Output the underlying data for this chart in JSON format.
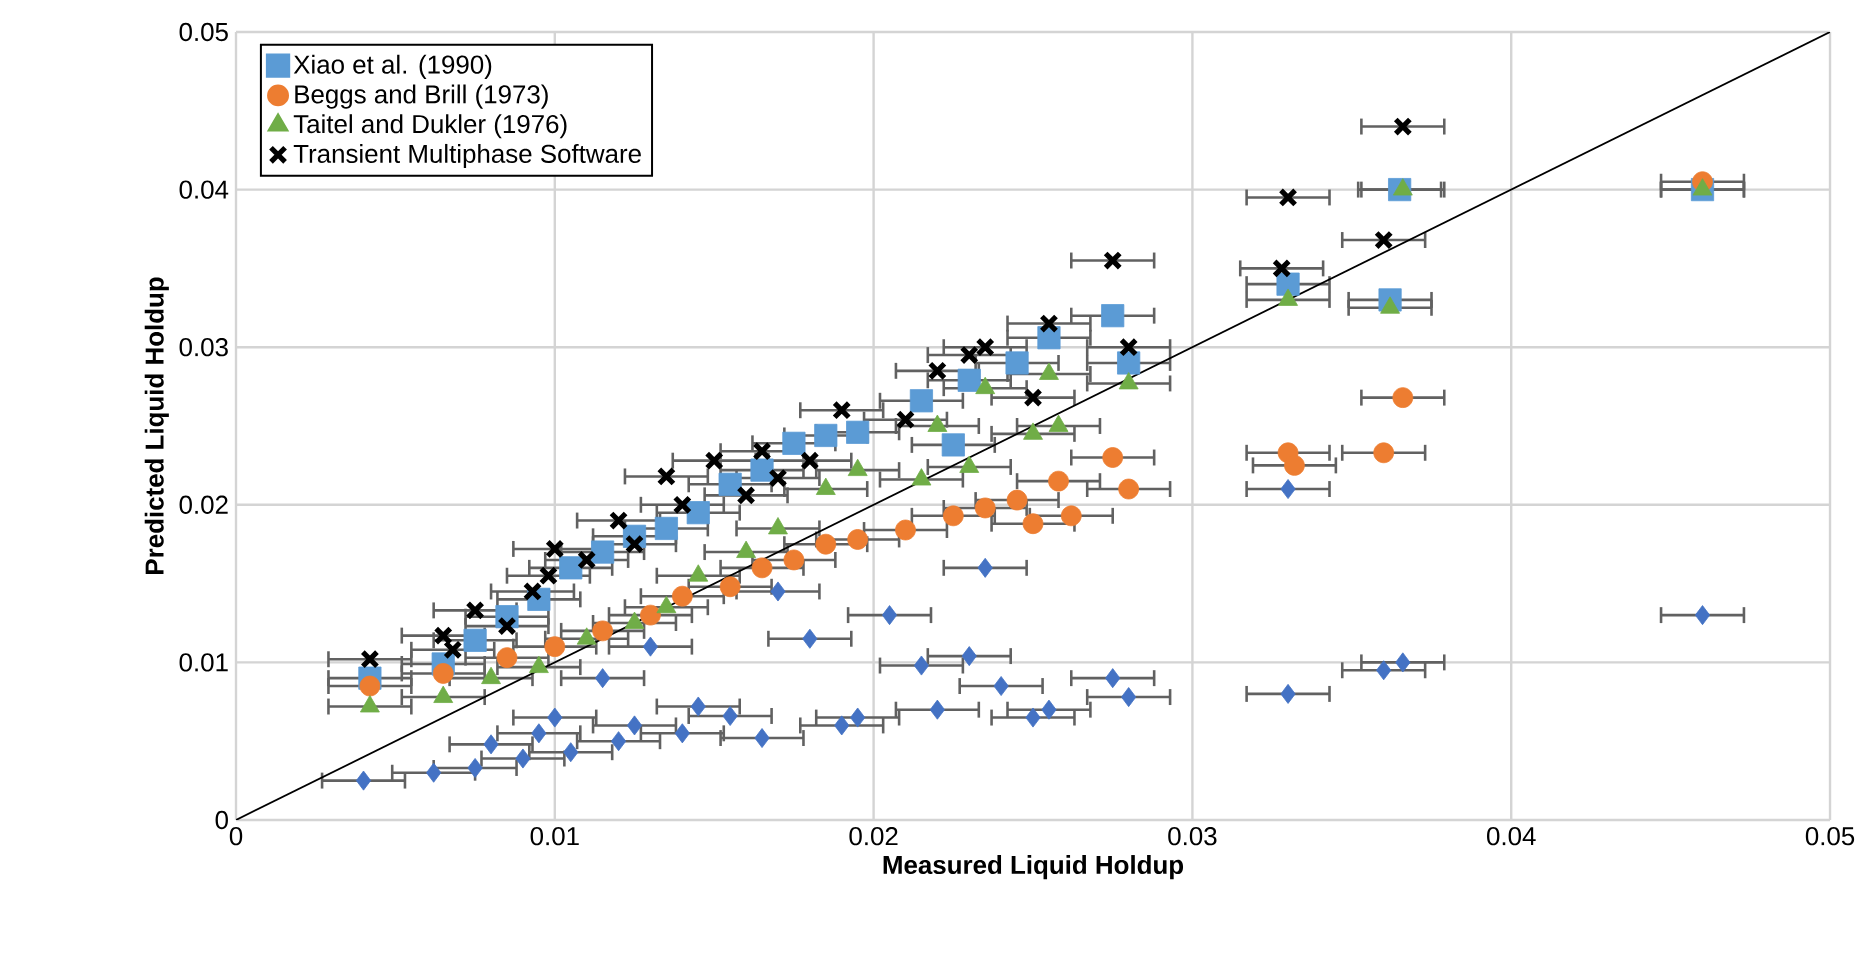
{
  "chart_data": {
    "type": "scatter",
    "xlabel": "Measured Liquid Holdup",
    "ylabel": "Predicted Liquid Holdup",
    "xlim": [
      0,
      0.05
    ],
    "ylim": [
      0,
      0.05
    ],
    "xticks": [
      0,
      0.01,
      0.02,
      0.03,
      0.04,
      0.05
    ],
    "yticks": [
      0,
      0.01,
      0.02,
      0.03,
      0.04,
      0.05
    ],
    "grid": true,
    "legend": "top left",
    "series": [
      {
        "name": "Xiao et al.  (1990)",
        "color": "#5b9bd5",
        "marker": "square",
        "x": [
          0.0042,
          0.0065,
          0.0075,
          0.0085,
          0.0095,
          0.0105,
          0.0115,
          0.0125,
          0.0135,
          0.0145,
          0.0155,
          0.0165,
          0.0175,
          0.0185,
          0.0195,
          0.0215,
          0.0225,
          0.023,
          0.0245,
          0.0255,
          0.0275,
          0.028,
          0.033,
          0.0365,
          0.0362,
          0.046
        ],
        "values": [
          0.009,
          0.0099,
          0.0114,
          0.0129,
          0.014,
          0.016,
          0.017,
          0.018,
          0.0185,
          0.0195,
          0.0213,
          0.0222,
          0.0239,
          0.0244,
          0.0246,
          0.0266,
          0.0238,
          0.0279,
          0.029,
          0.0306,
          0.032,
          0.029,
          0.034,
          0.04,
          0.033,
          0.04
        ],
        "xerrors": [
          0.0013,
          0.0013,
          0.0013,
          0.0013,
          0.0013,
          0.0013,
          0.0013,
          0.0013,
          0.0013,
          0.0013,
          0.0013,
          0.0013,
          0.0013,
          0.0013,
          0.0013,
          0.0013,
          0.0013,
          0.0013,
          0.0013,
          0.0013,
          0.0013,
          0.0013,
          0.0013,
          0.0013,
          0.0013,
          0.0013
        ]
      },
      {
        "name": "Beggs and Brill (1973)",
        "color": "#ed7d31",
        "marker": "circle",
        "x": [
          0.0042,
          0.0065,
          0.0085,
          0.01,
          0.0115,
          0.013,
          0.014,
          0.0155,
          0.0165,
          0.0175,
          0.0185,
          0.0195,
          0.021,
          0.0225,
          0.0235,
          0.0245,
          0.025,
          0.0258,
          0.0262,
          0.0275,
          0.028,
          0.033,
          0.0332,
          0.036,
          0.0366,
          0.046
        ],
        "values": [
          0.0085,
          0.0093,
          0.0103,
          0.011,
          0.012,
          0.013,
          0.0142,
          0.0148,
          0.016,
          0.0165,
          0.0175,
          0.0178,
          0.0184,
          0.0193,
          0.0198,
          0.0203,
          0.0188,
          0.0215,
          0.0193,
          0.023,
          0.021,
          0.0233,
          0.0225,
          0.0233,
          0.0268,
          0.0405
        ],
        "xerrors": [
          0.0013,
          0.0013,
          0.0013,
          0.0013,
          0.0013,
          0.0013,
          0.0013,
          0.0013,
          0.0013,
          0.0013,
          0.0013,
          0.0013,
          0.0013,
          0.0013,
          0.0013,
          0.0013,
          0.0013,
          0.0013,
          0.0013,
          0.0013,
          0.0013,
          0.0013,
          0.0013,
          0.0013,
          0.0013,
          0.0013
        ]
      },
      {
        "name": "Taitel and Dukler (1976)",
        "color": "#70ad47",
        "marker": "triangle",
        "x": [
          0.0042,
          0.0065,
          0.008,
          0.0095,
          0.011,
          0.0125,
          0.0135,
          0.0145,
          0.016,
          0.017,
          0.0185,
          0.0195,
          0.0215,
          0.022,
          0.023,
          0.0235,
          0.025,
          0.0258,
          0.0255,
          0.028,
          0.033,
          0.0362,
          0.0366,
          0.046
        ],
        "values": [
          0.0072,
          0.0078,
          0.009,
          0.0097,
          0.0115,
          0.0125,
          0.0135,
          0.0155,
          0.017,
          0.0185,
          0.021,
          0.0222,
          0.0216,
          0.025,
          0.0224,
          0.0274,
          0.0245,
          0.025,
          0.0283,
          0.0277,
          0.033,
          0.0325,
          0.04,
          0.04
        ],
        "xerrors": [
          0.0013,
          0.0013,
          0.0013,
          0.0013,
          0.0013,
          0.0013,
          0.0013,
          0.0013,
          0.0013,
          0.0013,
          0.0013,
          0.0013,
          0.0013,
          0.0013,
          0.0013,
          0.0013,
          0.0013,
          0.0013,
          0.0013,
          0.0013,
          0.0013,
          0.0013,
          0.0013,
          0.0013
        ]
      },
      {
        "name": "Transient Multiphase Software",
        "color": "#000000",
        "marker": "cross",
        "x": [
          0.0042,
          0.0065,
          0.0068,
          0.0075,
          0.0085,
          0.0093,
          0.0098,
          0.01,
          0.011,
          0.012,
          0.0125,
          0.0135,
          0.014,
          0.015,
          0.016,
          0.0165,
          0.017,
          0.018,
          0.019,
          0.021,
          0.022,
          0.023,
          0.0235,
          0.025,
          0.0255,
          0.0275,
          0.028,
          0.033,
          0.0328,
          0.036,
          0.0366
        ],
        "values": [
          0.0102,
          0.0117,
          0.0108,
          0.0133,
          0.0123,
          0.0145,
          0.0155,
          0.0172,
          0.0165,
          0.019,
          0.0175,
          0.0218,
          0.02,
          0.0228,
          0.0206,
          0.0234,
          0.0217,
          0.0228,
          0.026,
          0.0254,
          0.0285,
          0.0295,
          0.03,
          0.0268,
          0.0315,
          0.0355,
          0.03,
          0.0395,
          0.035,
          0.0368,
          0.044
        ],
        "xerrors": [
          0.0013,
          0.0013,
          0.0013,
          0.0013,
          0.0013,
          0.0013,
          0.0013,
          0.0013,
          0.0013,
          0.0013,
          0.0013,
          0.0013,
          0.0013,
          0.0013,
          0.0013,
          0.0013,
          0.0013,
          0.0013,
          0.0013,
          0.0013,
          0.0013,
          0.0013,
          0.0013,
          0.0013,
          0.0013,
          0.0013,
          0.0013,
          0.0013,
          0.0013,
          0.0013,
          0.0013
        ]
      },
      {
        "color": "#4472c4",
        "marker": "diamond",
        "x": [
          0.004,
          0.0062,
          0.0075,
          0.008,
          0.009,
          0.0095,
          0.01,
          0.0105,
          0.0115,
          0.012,
          0.0125,
          0.013,
          0.014,
          0.0145,
          0.0155,
          0.0165,
          0.017,
          0.018,
          0.019,
          0.0195,
          0.0205,
          0.0215,
          0.022,
          0.023,
          0.0235,
          0.024,
          0.025,
          0.0255,
          0.0275,
          0.028,
          0.033,
          0.033,
          0.036,
          0.0366,
          0.046
        ],
        "values": [
          0.0025,
          0.003,
          0.0033,
          0.0048,
          0.0039,
          0.0055,
          0.0065,
          0.0043,
          0.009,
          0.005,
          0.006,
          0.011,
          0.0055,
          0.0072,
          0.0066,
          0.0052,
          0.0145,
          0.0115,
          0.006,
          0.0065,
          0.013,
          0.0098,
          0.007,
          0.0104,
          0.016,
          0.0085,
          0.0065,
          0.007,
          0.009,
          0.0078,
          0.021,
          0.008,
          0.0095,
          0.01,
          0.013
        ],
        "xerrors": [
          0.0013,
          0.0013,
          0.0013,
          0.0013,
          0.0013,
          0.0013,
          0.0013,
          0.0013,
          0.0013,
          0.0013,
          0.0013,
          0.0013,
          0.0013,
          0.0013,
          0.0013,
          0.0013,
          0.0013,
          0.0013,
          0.0013,
          0.0013,
          0.0013,
          0.0013,
          0.0013,
          0.0013,
          0.0013,
          0.0013,
          0.0013,
          0.0013,
          0.0013,
          0.0013,
          0.0013,
          0.0013,
          0.0013,
          0.0013,
          0.0013
        ]
      },
      {
        "type": "line",
        "color": "#000000",
        "x": [
          0,
          0.05
        ],
        "values": [
          0,
          0.05
        ]
      }
    ]
  }
}
